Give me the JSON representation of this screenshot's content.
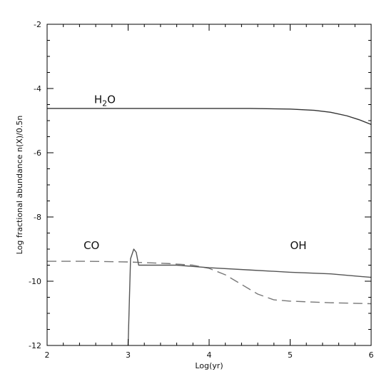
{
  "chart_data": {
    "type": "line",
    "title": "",
    "xlabel": "Log(yr)",
    "ylabel": "Log fractional abundance n(X)/0.5n",
    "xlim": [
      2,
      6
    ],
    "ylim": [
      -12,
      -2
    ],
    "x_ticks": [
      2,
      3,
      4,
      5,
      6
    ],
    "y_ticks": [
      -2,
      -4,
      -6,
      -8,
      -10,
      -12
    ],
    "x_tick_labels": [
      "2",
      "3",
      "4",
      "5",
      "6"
    ],
    "y_tick_labels": [
      "-2",
      "-4",
      "-6",
      "-8",
      "-10",
      "-12"
    ],
    "x_minor_step": 0.2,
    "y_minor_step": 0.5,
    "grid": false,
    "legend": "none",
    "series": [
      {
        "label_parts": [
          "H",
          "2",
          "O"
        ],
        "style": "solid",
        "color": "#333333",
        "label_at": [
          2.58,
          -4.45
        ],
        "points": [
          [
            2,
            -4.62
          ],
          [
            3,
            -4.62
          ],
          [
            4,
            -4.62
          ],
          [
            4.5,
            -4.62
          ],
          [
            5,
            -4.64
          ],
          [
            5.3,
            -4.68
          ],
          [
            5.5,
            -4.74
          ],
          [
            5.7,
            -4.85
          ],
          [
            5.85,
            -4.97
          ],
          [
            6,
            -5.12
          ]
        ]
      },
      {
        "label": "CO",
        "style": "dashed",
        "color": "#777777",
        "label_at": [
          2.45,
          -9.0
        ],
        "points": [
          [
            2,
            -9.38
          ],
          [
            2.5,
            -9.38
          ],
          [
            3,
            -9.4
          ],
          [
            3.5,
            -9.45
          ],
          [
            3.8,
            -9.5
          ],
          [
            4.0,
            -9.6
          ],
          [
            4.2,
            -9.8
          ],
          [
            4.4,
            -10.1
          ],
          [
            4.6,
            -10.4
          ],
          [
            4.8,
            -10.58
          ],
          [
            5.0,
            -10.62
          ],
          [
            5.5,
            -10.67
          ],
          [
            6,
            -10.7
          ]
        ]
      },
      {
        "label": "OH",
        "style": "solid",
        "color": "#555555",
        "label_at": [
          5.0,
          -9.0
        ],
        "points": [
          [
            3.0,
            -12.0
          ],
          [
            3.03,
            -9.3
          ],
          [
            3.07,
            -9.0
          ],
          [
            3.1,
            -9.1
          ],
          [
            3.13,
            -9.5
          ],
          [
            3.3,
            -9.5
          ],
          [
            3.6,
            -9.5
          ],
          [
            4.0,
            -9.58
          ],
          [
            4.5,
            -9.65
          ],
          [
            5.0,
            -9.72
          ],
          [
            5.5,
            -9.77
          ],
          [
            6,
            -9.88
          ]
        ]
      }
    ]
  }
}
